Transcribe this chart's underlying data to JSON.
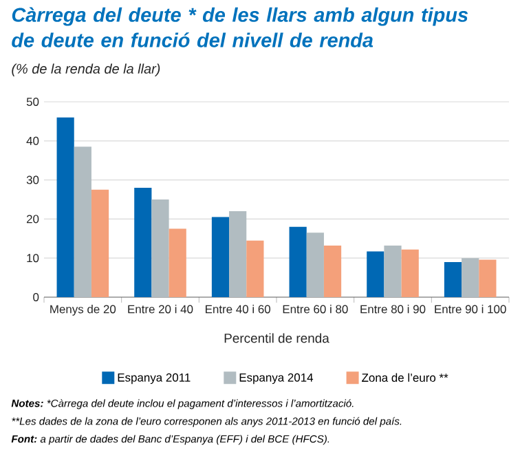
{
  "chart_data": {
    "type": "bar",
    "title": "Càrrega del deute * de les llars amb algun tipus de deute en funció del nivell de renda",
    "subtitle": "(% de la renda de la llar)",
    "xlabel": "Percentil de renda",
    "categories": [
      "Menys de 20",
      "Entre 20 i 40",
      "Entre 40 i 60",
      "Entre 60 i 80",
      "Entre 80 i 90",
      "Entre 90 i 100"
    ],
    "series": [
      {
        "name": "Espanya 2011",
        "color": "#0068b4",
        "values": [
          46,
          28,
          20.5,
          18,
          11.7,
          9
        ]
      },
      {
        "name": "Espanya 2014",
        "color": "#b1bcc1",
        "values": [
          38.5,
          25,
          22,
          16.5,
          13.2,
          10
        ]
      },
      {
        "name": "Zona de l’euro **",
        "color": "#f4a07a",
        "values": [
          27.5,
          17.5,
          14.5,
          13.2,
          12.2,
          9.6
        ]
      }
    ],
    "ylim": [
      0,
      50
    ],
    "yticks": [
      0,
      10,
      20,
      30,
      40,
      50
    ],
    "grid": "y",
    "legend": "bottom",
    "annotations": [
      "Notes:",
      "*Càrrega del deute inclou el pagament d’interessos i l’amortització.",
      "**Les dades de la zona de l’euro corresponen als anys 2011-2013 en funció del país.",
      "Font:",
      "a partir de dades del Banc d’Espanya (EFF) i del BCE (HFCS)."
    ]
  }
}
